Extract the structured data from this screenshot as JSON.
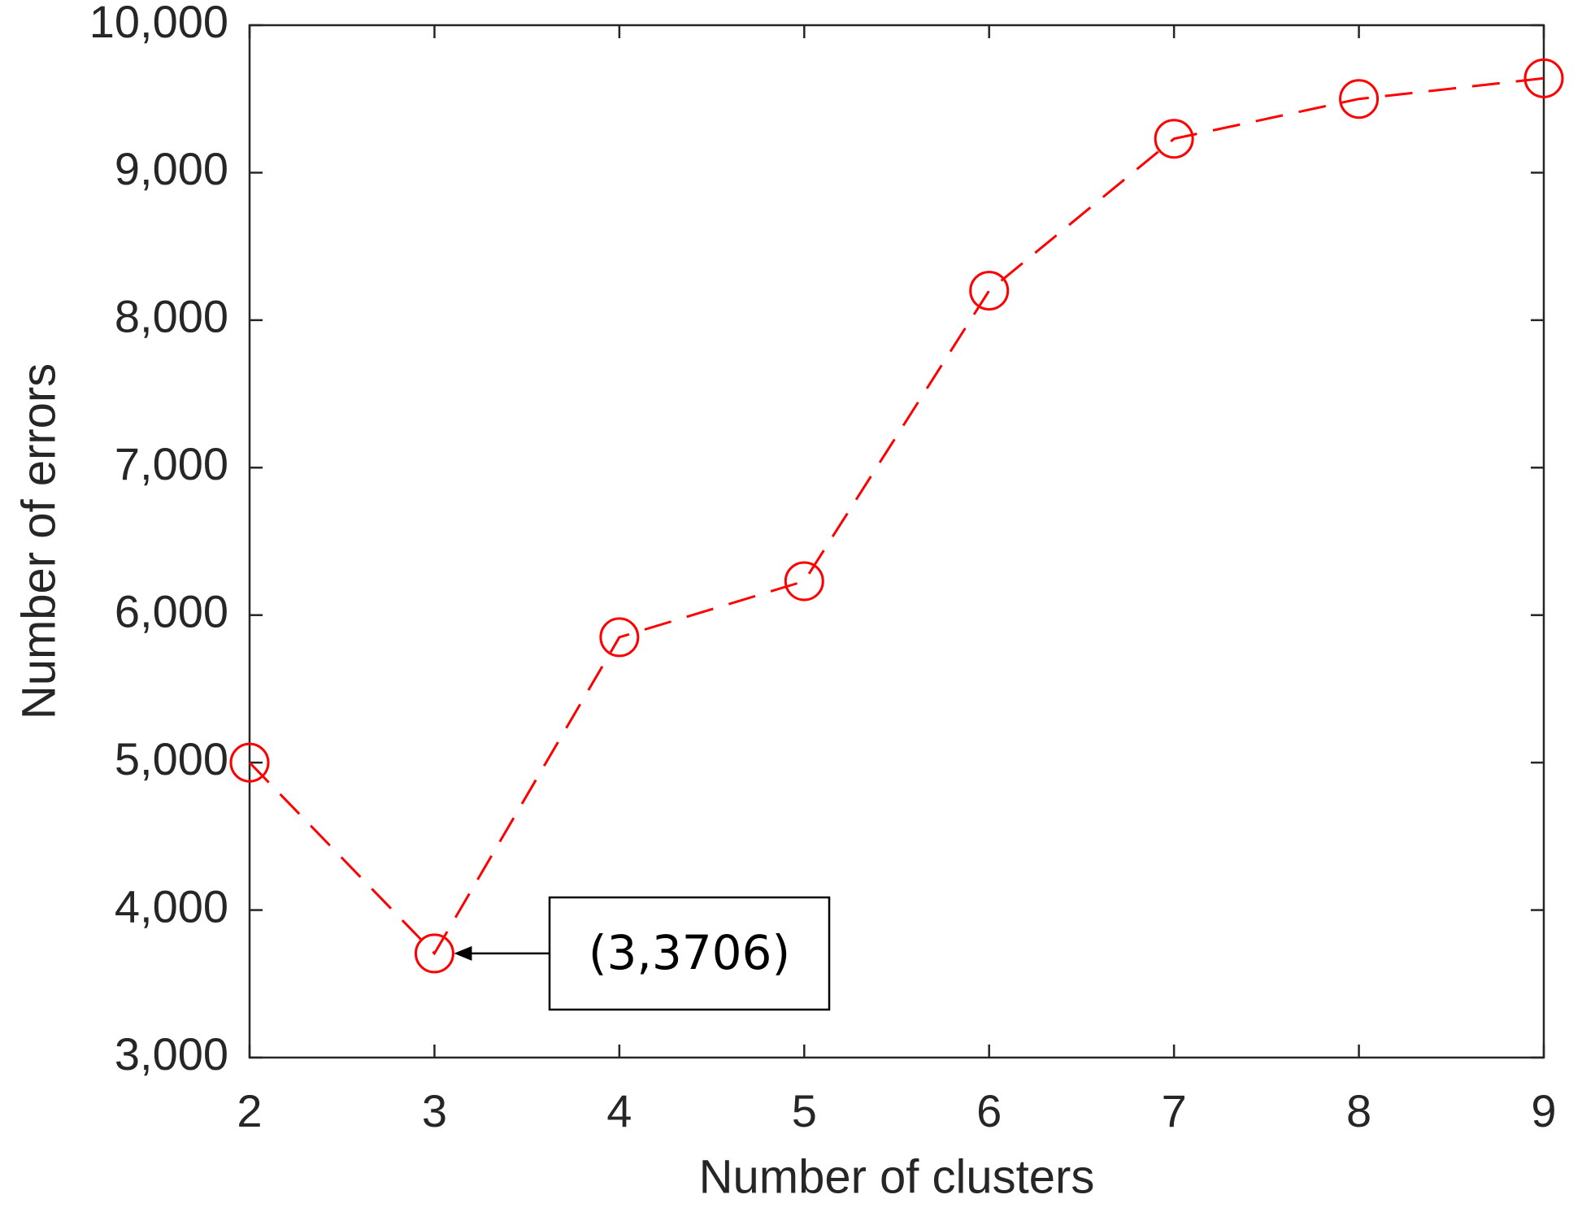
{
  "chart_data": {
    "type": "line",
    "x_label": "Number of clusters",
    "y_label": "Number of errors",
    "x": [
      2,
      3,
      4,
      5,
      6,
      7,
      8,
      9
    ],
    "series": [
      {
        "color": "#ff0000",
        "values": [
          5000,
          3706,
          5850,
          6230,
          8200,
          9230,
          9500,
          9640
        ]
      }
    ],
    "xlim": [
      2,
      9
    ],
    "xticks": [
      2,
      3,
      4,
      5,
      6,
      7,
      8,
      9
    ],
    "ylim": [
      3000,
      10000
    ],
    "yticks": [
      {
        "value": 3000,
        "label": "3,000"
      },
      {
        "value": 4000,
        "label": "4,000"
      },
      {
        "value": 5000,
        "label": "5,000"
      },
      {
        "value": 6000,
        "label": "6,000"
      },
      {
        "value": 7000,
        "label": "7,000"
      },
      {
        "value": 8000,
        "label": "8,000"
      },
      {
        "value": 9000,
        "label": "9,000"
      },
      {
        "value": 10000,
        "label": "10,000"
      }
    ],
    "annotation": "(3,3706)"
  }
}
